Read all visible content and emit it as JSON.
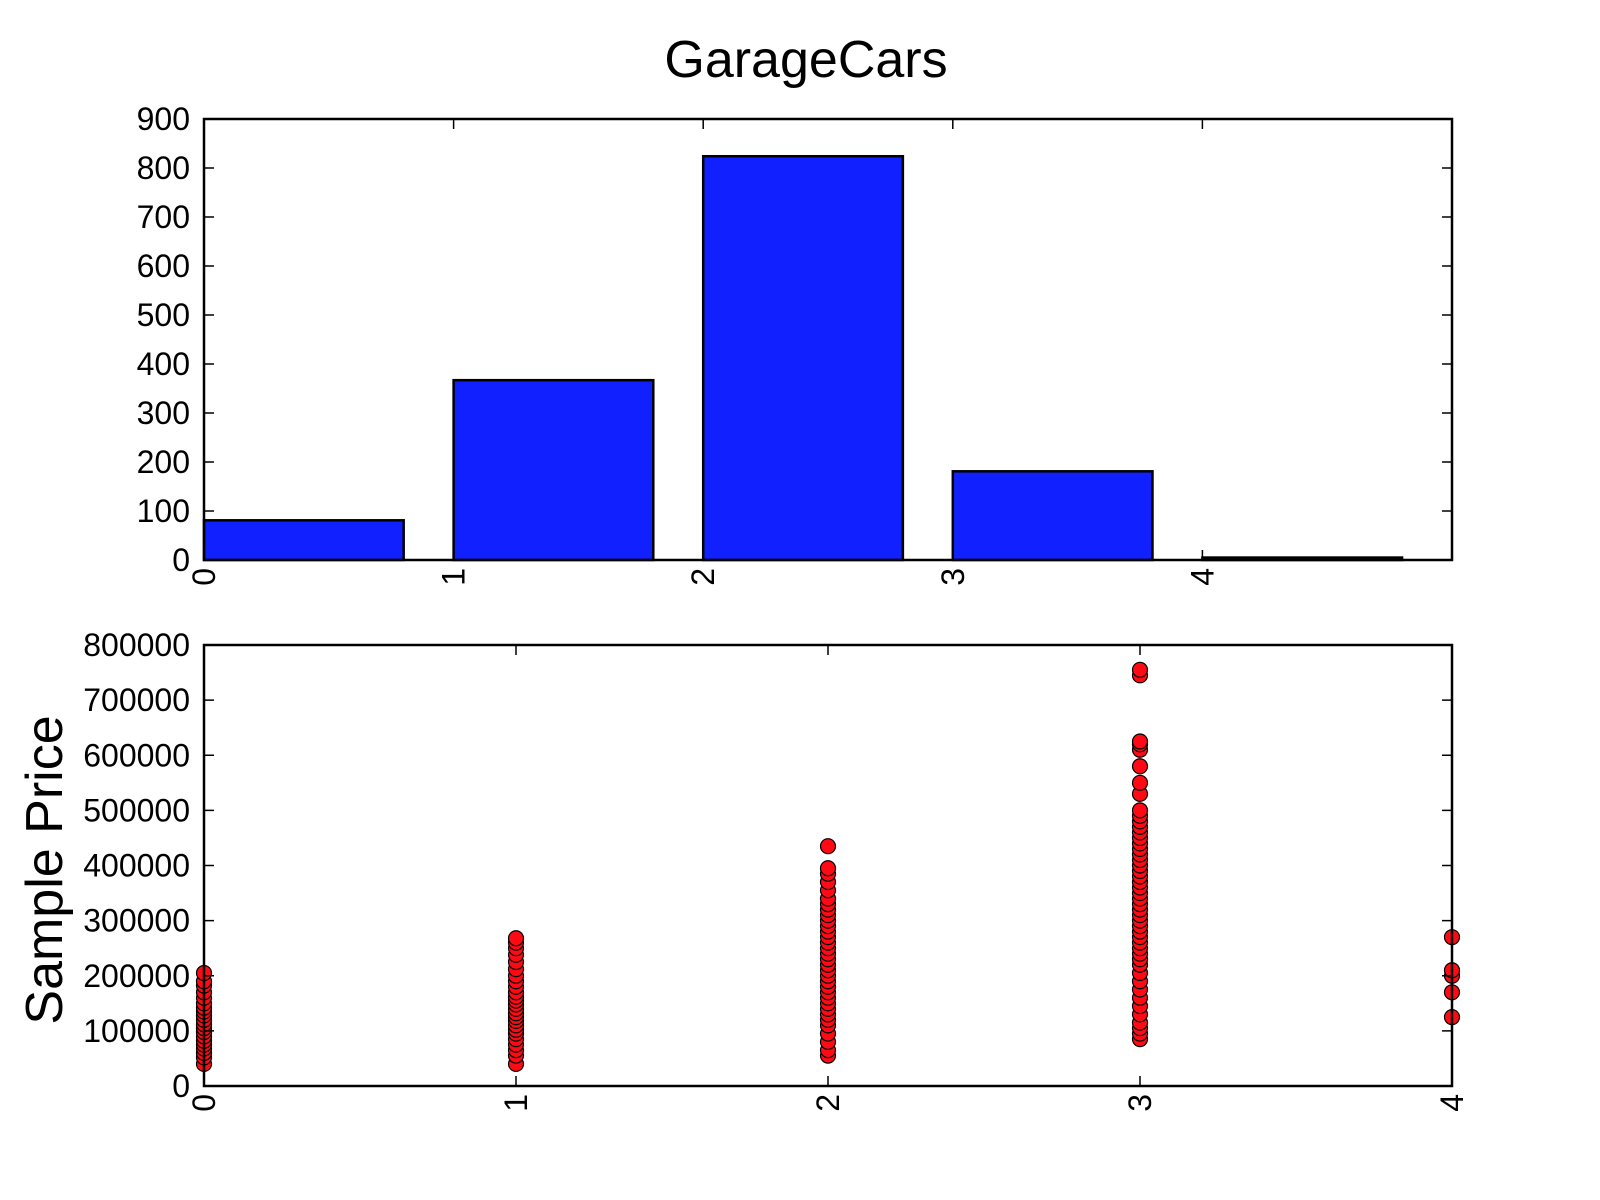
{
  "figure": {
    "title": "GarageCars"
  },
  "chart_data": [
    {
      "type": "bar",
      "title": "GarageCars",
      "xlabel": "",
      "ylabel": "",
      "categories": [
        "0",
        "1",
        "2",
        "3",
        "4"
      ],
      "x_ticks": [
        "0",
        "1",
        "2",
        "3",
        "4"
      ],
      "x_range": [
        0,
        5
      ],
      "values": [
        81,
        367,
        824,
        181,
        5
      ],
      "ylim": [
        0,
        900
      ],
      "y_ticks": [
        "0",
        "100",
        "200",
        "300",
        "400",
        "500",
        "600",
        "700",
        "800",
        "900"
      ],
      "bar_color": "#1020ff",
      "edge_color": "#000000",
      "grid": false,
      "legend": "none"
    },
    {
      "type": "scatter",
      "title": "",
      "xlabel": "",
      "ylabel": "Sample Price",
      "xlim": [
        0,
        4
      ],
      "ylim": [
        0,
        800000
      ],
      "x_ticks": [
        "0",
        "1",
        "2",
        "3",
        "4"
      ],
      "y_ticks": [
        "0",
        "100000",
        "200000",
        "300000",
        "400000",
        "500000",
        "600000",
        "700000",
        "800000"
      ],
      "marker_color": "#ff0a14",
      "marker_edge": "#000000",
      "grid": false,
      "legend": "none",
      "points": [
        [
          0,
          40000
        ],
        [
          0,
          52000
        ],
        [
          0,
          60000
        ],
        [
          0,
          68000
        ],
        [
          0,
          75000
        ],
        [
          0,
          82000
        ],
        [
          0,
          90000
        ],
        [
          0,
          98000
        ],
        [
          0,
          105000
        ],
        [
          0,
          112000
        ],
        [
          0,
          120000
        ],
        [
          0,
          128000
        ],
        [
          0,
          135000
        ],
        [
          0,
          142000
        ],
        [
          0,
          150000
        ],
        [
          0,
          160000
        ],
        [
          0,
          170000
        ],
        [
          0,
          182000
        ],
        [
          0,
          190000
        ],
        [
          0,
          205000
        ],
        [
          1,
          40000
        ],
        [
          1,
          55000
        ],
        [
          1,
          65000
        ],
        [
          1,
          75000
        ],
        [
          1,
          85000
        ],
        [
          1,
          95000
        ],
        [
          1,
          102000
        ],
        [
          1,
          110000
        ],
        [
          1,
          118000
        ],
        [
          1,
          125000
        ],
        [
          1,
          132000
        ],
        [
          1,
          140000
        ],
        [
          1,
          148000
        ],
        [
          1,
          155000
        ],
        [
          1,
          162000
        ],
        [
          1,
          170000
        ],
        [
          1,
          180000
        ],
        [
          1,
          190000
        ],
        [
          1,
          200000
        ],
        [
          1,
          212000
        ],
        [
          1,
          225000
        ],
        [
          1,
          238000
        ],
        [
          1,
          250000
        ],
        [
          1,
          260000
        ],
        [
          1,
          268000
        ],
        [
          2,
          55000
        ],
        [
          2,
          65000
        ],
        [
          2,
          80000
        ],
        [
          2,
          95000
        ],
        [
          2,
          110000
        ],
        [
          2,
          120000
        ],
        [
          2,
          130000
        ],
        [
          2,
          140000
        ],
        [
          2,
          150000
        ],
        [
          2,
          160000
        ],
        [
          2,
          170000
        ],
        [
          2,
          180000
        ],
        [
          2,
          190000
        ],
        [
          2,
          200000
        ],
        [
          2,
          210000
        ],
        [
          2,
          220000
        ],
        [
          2,
          230000
        ],
        [
          2,
          240000
        ],
        [
          2,
          250000
        ],
        [
          2,
          260000
        ],
        [
          2,
          270000
        ],
        [
          2,
          280000
        ],
        [
          2,
          290000
        ],
        [
          2,
          300000
        ],
        [
          2,
          310000
        ],
        [
          2,
          320000
        ],
        [
          2,
          330000
        ],
        [
          2,
          340000
        ],
        [
          2,
          355000
        ],
        [
          2,
          370000
        ],
        [
          2,
          385000
        ],
        [
          2,
          395000
        ],
        [
          2,
          435000
        ],
        [
          3,
          85000
        ],
        [
          3,
          95000
        ],
        [
          3,
          105000
        ],
        [
          3,
          115000
        ],
        [
          3,
          130000
        ],
        [
          3,
          145000
        ],
        [
          3,
          160000
        ],
        [
          3,
          175000
        ],
        [
          3,
          190000
        ],
        [
          3,
          205000
        ],
        [
          3,
          220000
        ],
        [
          3,
          230000
        ],
        [
          3,
          240000
        ],
        [
          3,
          250000
        ],
        [
          3,
          260000
        ],
        [
          3,
          270000
        ],
        [
          3,
          280000
        ],
        [
          3,
          290000
        ],
        [
          3,
          300000
        ],
        [
          3,
          310000
        ],
        [
          3,
          320000
        ],
        [
          3,
          330000
        ],
        [
          3,
          340000
        ],
        [
          3,
          350000
        ],
        [
          3,
          360000
        ],
        [
          3,
          370000
        ],
        [
          3,
          380000
        ],
        [
          3,
          390000
        ],
        [
          3,
          400000
        ],
        [
          3,
          410000
        ],
        [
          3,
          420000
        ],
        [
          3,
          430000
        ],
        [
          3,
          440000
        ],
        [
          3,
          450000
        ],
        [
          3,
          460000
        ],
        [
          3,
          470000
        ],
        [
          3,
          480000
        ],
        [
          3,
          490000
        ],
        [
          3,
          500000
        ],
        [
          3,
          530000
        ],
        [
          3,
          550000
        ],
        [
          3,
          580000
        ],
        [
          3,
          610000
        ],
        [
          3,
          620000
        ],
        [
          3,
          625000
        ],
        [
          3,
          745000
        ],
        [
          3,
          755000
        ],
        [
          4,
          125000
        ],
        [
          4,
          170000
        ],
        [
          4,
          200000
        ],
        [
          4,
          210000
        ],
        [
          4,
          270000
        ]
      ]
    }
  ]
}
